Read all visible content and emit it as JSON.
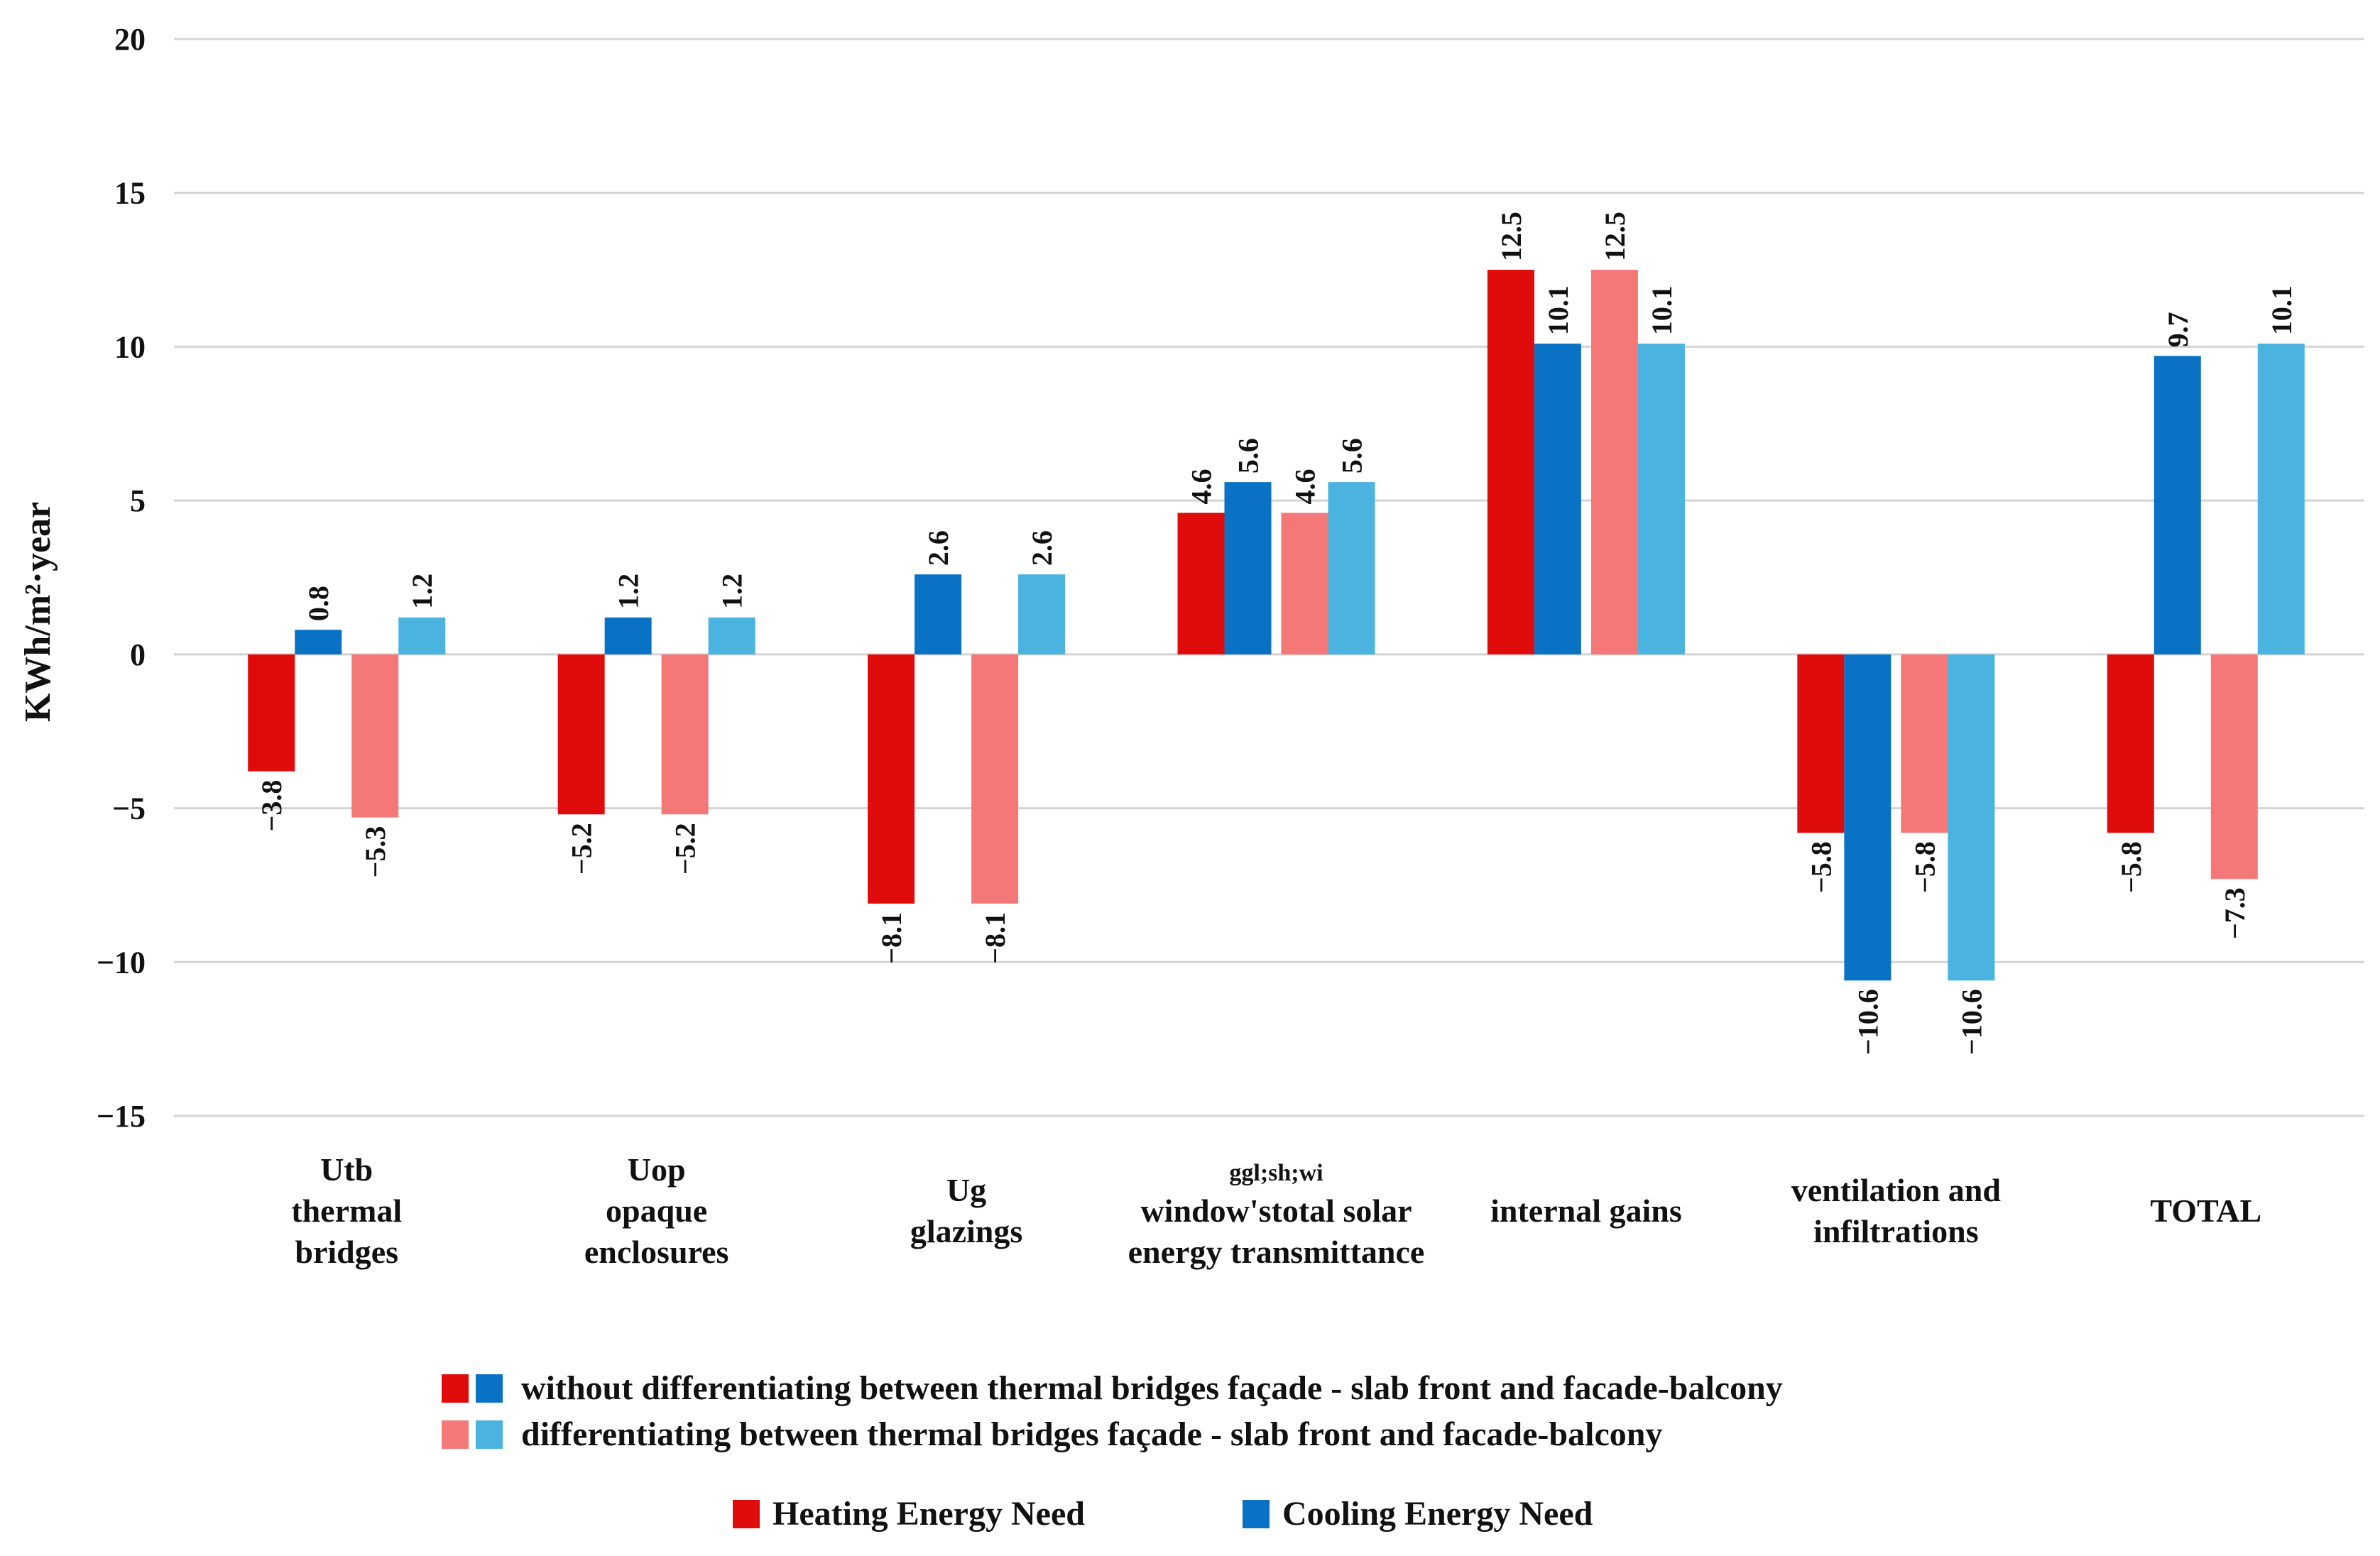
{
  "chart_data": {
    "type": "bar",
    "ylabel": "KWh/m²·year",
    "ylim": [
      -15,
      20
    ],
    "yticks": [
      20,
      15,
      10,
      5,
      0,
      -5,
      -10,
      -15
    ],
    "ytick_labels": [
      "20",
      "15",
      "10",
      "5",
      "0",
      "−5",
      "−10",
      "−15"
    ],
    "grid": true,
    "categories": [
      {
        "symbol": "Utb",
        "lines": [
          "thermal",
          "bridges"
        ]
      },
      {
        "symbol": "Uop",
        "lines": [
          "opaque",
          "enclosures"
        ]
      },
      {
        "symbol": "Ug",
        "lines": [
          "glazings"
        ]
      },
      {
        "symbol": "ggl;sh;wi",
        "lines": [
          "window'stotal solar",
          "energy transmittance"
        ]
      },
      {
        "symbol": "",
        "lines": [
          "internal gains"
        ]
      },
      {
        "symbol": "",
        "lines": [
          "ventilation and",
          "infiltrations"
        ]
      },
      {
        "symbol": "",
        "lines": [
          "TOTAL"
        ]
      }
    ],
    "series": [
      {
        "name": "Heating Energy Need (without differentiating)",
        "color": "#e00b0b",
        "values": [
          -3.8,
          -5.2,
          -8.1,
          4.6,
          12.5,
          -5.8,
          -5.8
        ],
        "labels": [
          "−3.8",
          "−5.2",
          "−8.1",
          "4.6",
          "12.5",
          "−5.8",
          "−5.8"
        ]
      },
      {
        "name": "Cooling Energy Need (without differentiating)",
        "color": "#0a72c4",
        "values": [
          0.8,
          1.2,
          2.6,
          5.6,
          10.1,
          -10.6,
          9.7
        ],
        "labels": [
          "0.8",
          "1.2",
          "2.6",
          "5.6",
          "10.1",
          "−10.6",
          "9.7"
        ]
      },
      {
        "name": "Heating Energy Need (differentiating)",
        "color": "#f47878",
        "values": [
          -5.3,
          -5.2,
          -8.1,
          4.6,
          12.5,
          -5.8,
          -7.3
        ],
        "labels": [
          "−5.3",
          "−5.2",
          "−8.1",
          "4.6",
          "12.5",
          "−5.8",
          "−7.3"
        ]
      },
      {
        "name": "Cooling Energy Need (differentiating)",
        "color": "#4ab3e0",
        "values": [
          1.2,
          1.2,
          2.6,
          5.6,
          10.1,
          -10.6,
          10.1
        ],
        "labels": [
          "1.2",
          "1.2",
          "2.6",
          "5.6",
          "10.1",
          "−10.6",
          "10.1"
        ]
      }
    ],
    "legend": {
      "line1": "without differentiating between thermal bridges façade - slab front and facade-balcony",
      "line2": "differentiating between thermal bridges façade - slab front and facade-balcony",
      "heating": "Heating Energy Need",
      "cooling": "Cooling Energy Need"
    }
  }
}
